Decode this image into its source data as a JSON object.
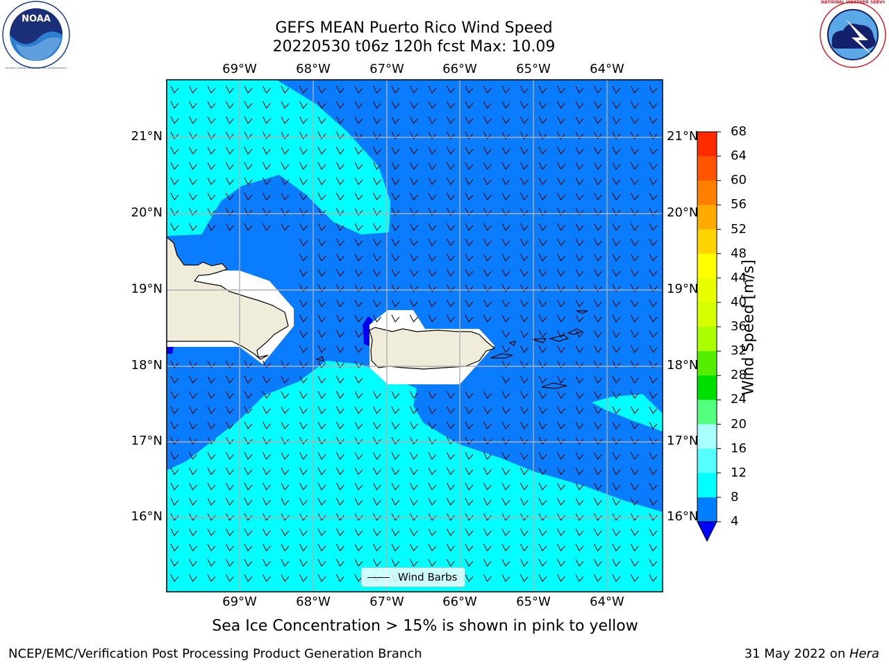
{
  "title": {
    "line1": "GEFS MEAN Puerto Rico Wind Speed",
    "line2": "20220530 t06z 120h fcst   Max: 10.09"
  },
  "logos": {
    "left": "noaa-logo",
    "left_text": "NOAA",
    "left_ring": "NATIONAL OCEANIC AND ATMOSPHERIC ADMINISTRATION · U.S. DEPARTMENT OF COMMERCE",
    "right": "nws-logo",
    "right_ring": "NATIONAL WEATHER SERVICE"
  },
  "map": {
    "lon_ticks": [
      "69°W",
      "68°W",
      "67°W",
      "66°W",
      "65°W",
      "64°W"
    ],
    "lat_ticks": [
      "21°N",
      "20°N",
      "19°N",
      "18°N",
      "17°N",
      "16°N"
    ],
    "colors": {
      "land": "#efedd9",
      "ocean_4_8": "#0a7cff",
      "ocean_8_12": "#00ffff"
    },
    "legend_label": "Wind Barbs"
  },
  "colorbar": {
    "title": "Wind Speed [m/s]",
    "labels": [
      "68",
      "64",
      "60",
      "56",
      "52",
      "48",
      "44",
      "40",
      "36",
      "32",
      "28",
      "24",
      "20",
      "16",
      "12",
      "8",
      "4"
    ],
    "colors": [
      "#ff0000",
      "#ff2a00",
      "#ff5500",
      "#ff8000",
      "#ffaa00",
      "#ffd400",
      "#ffff00",
      "#e8ff00",
      "#d4ff00",
      "#aaff00",
      "#55ee00",
      "#00e000",
      "#55ff80",
      "#aaffff",
      "#55ffff",
      "#00ffff",
      "#0080ff",
      "#0000ff"
    ]
  },
  "note": "Sea Ice Concentration > 15% is shown in pink to yellow",
  "footer": {
    "left": "NCEP/EMC/Verification Post Processing Product Generation Branch",
    "right_prefix": "31 May 2022 on ",
    "right_host": "Hera"
  }
}
